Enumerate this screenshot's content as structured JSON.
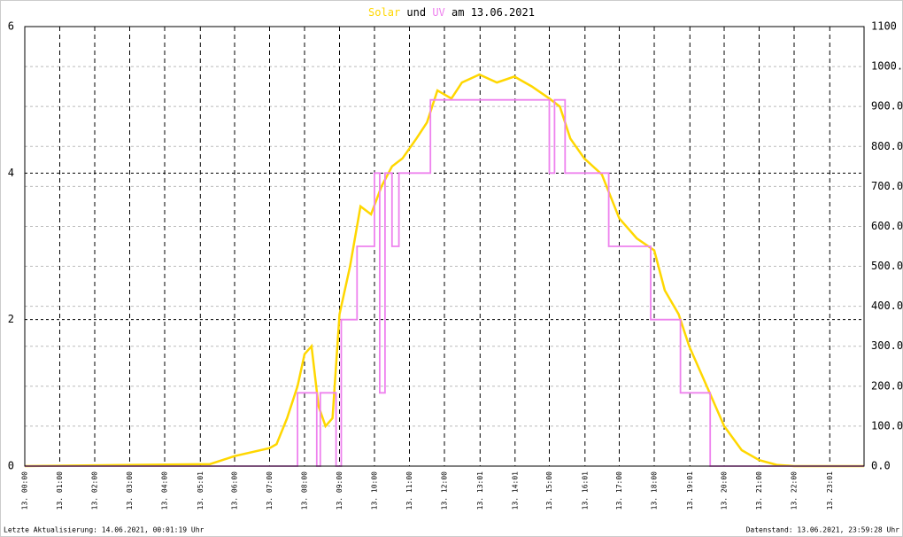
{
  "chart_data": {
    "type": "line",
    "title_join": "und",
    "title_date": "am 13.06.2021",
    "xlim": [
      0,
      24
    ],
    "xticks": [
      {
        "value": 0,
        "label": "13. 00:00"
      },
      {
        "value": 1,
        "label": "13. 01:00"
      },
      {
        "value": 2,
        "label": "13. 02:00"
      },
      {
        "value": 3,
        "label": "13. 03:00"
      },
      {
        "value": 4,
        "label": "13. 04:00"
      },
      {
        "value": 5.02,
        "label": "13. 05:01"
      },
      {
        "value": 6,
        "label": "13. 06:00"
      },
      {
        "value": 7,
        "label": "13. 07:00"
      },
      {
        "value": 8,
        "label": "13. 08:00"
      },
      {
        "value": 9,
        "label": "13. 09:00"
      },
      {
        "value": 10,
        "label": "13. 10:00"
      },
      {
        "value": 11,
        "label": "13. 11:00"
      },
      {
        "value": 12,
        "label": "13. 12:00"
      },
      {
        "value": 13.02,
        "label": "13. 13:01"
      },
      {
        "value": 14.02,
        "label": "13. 14:01"
      },
      {
        "value": 15,
        "label": "13. 15:00"
      },
      {
        "value": 16.02,
        "label": "13. 16:01"
      },
      {
        "value": 17,
        "label": "13. 17:00"
      },
      {
        "value": 18,
        "label": "13. 18:00"
      },
      {
        "value": 19.02,
        "label": "13. 19:01"
      },
      {
        "value": 20,
        "label": "13. 20:00"
      },
      {
        "value": 21,
        "label": "13. 21:00"
      },
      {
        "value": 22,
        "label": "13. 22:00"
      },
      {
        "value": 23.02,
        "label": "13. 23:01"
      }
    ],
    "ylim": [
      0,
      6
    ],
    "yticks": [
      0,
      2,
      4,
      6
    ],
    "y2lim": [
      0,
      1100
    ],
    "y2ticks": [
      {
        "value": 0,
        "label": "0.0"
      },
      {
        "value": 100,
        "label": "100.0"
      },
      {
        "value": 200,
        "label": "200.0"
      },
      {
        "value": 300,
        "label": "300.0"
      },
      {
        "value": 400,
        "label": "400.0"
      },
      {
        "value": 500,
        "label": "500.0"
      },
      {
        "value": 600,
        "label": "600.0"
      },
      {
        "value": 700,
        "label": "700.0"
      },
      {
        "value": 800,
        "label": "800.0"
      },
      {
        "value": 900,
        "label": "900.0"
      },
      {
        "value": 1000,
        "label": "1000.0"
      },
      {
        "value": 1100,
        "label": "1100"
      }
    ],
    "grid": true,
    "series": [
      {
        "name": "Solar",
        "color": "#ffd700",
        "axis": "y2",
        "x": [
          0,
          5.3,
          6.0,
          7.0,
          7.2,
          7.5,
          7.8,
          8.0,
          8.2,
          8.4,
          8.6,
          8.8,
          9.0,
          9.3,
          9.6,
          9.9,
          10.2,
          10.5,
          10.8,
          11.2,
          11.5,
          11.8,
          12.2,
          12.5,
          13.0,
          13.5,
          14.0,
          14.5,
          15.0,
          15.3,
          15.6,
          16.0,
          16.5,
          17.0,
          17.5,
          18.0,
          18.3,
          18.7,
          19.0,
          19.5,
          20.0,
          20.5,
          21.0,
          21.5,
          22.0,
          24.0
        ],
        "values": [
          0,
          5,
          25,
          45,
          55,
          120,
          200,
          280,
          300,
          150,
          100,
          120,
          380,
          500,
          650,
          630,
          700,
          750,
          770,
          820,
          860,
          940,
          920,
          960,
          980,
          960,
          975,
          950,
          920,
          900,
          820,
          770,
          730,
          620,
          570,
          540,
          440,
          380,
          300,
          200,
          100,
          40,
          15,
          3,
          0,
          0
        ]
      },
      {
        "name": "UV",
        "color": "#ee82ee",
        "x": [
          0,
          7.8,
          7.8,
          8.35,
          8.35,
          8.45,
          8.45,
          8.9,
          8.9,
          9.05,
          9.05,
          9.5,
          9.5,
          10.0,
          10.0,
          10.15,
          10.15,
          10.3,
          10.3,
          10.5,
          10.5,
          10.7,
          10.7,
          11.6,
          11.6,
          15.0,
          15.0,
          15.15,
          15.15,
          15.45,
          15.45,
          16.7,
          16.7,
          17.9,
          17.9,
          18.75,
          18.75,
          19.6,
          19.6,
          24
        ],
        "values": [
          0,
          0,
          1,
          1,
          0,
          0,
          1,
          1,
          0,
          0,
          2,
          2,
          3,
          3,
          4,
          4,
          1,
          1,
          4,
          4,
          3,
          3,
          4,
          4,
          5,
          5,
          4,
          4,
          5,
          5,
          4,
          4,
          3,
          3,
          2,
          2,
          1,
          1,
          0,
          0
        ]
      }
    ],
    "footer_left": "Letzte Aktualisierung: 14.06.2021, 00:01:19 Uhr",
    "footer_right": "Datenstand: 13.06.2021, 23:59:28 Uhr"
  }
}
